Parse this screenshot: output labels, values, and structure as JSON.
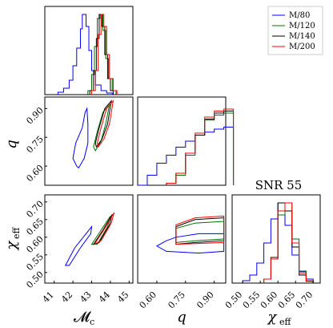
{
  "chart_data": {
    "type": "corner",
    "title": "SNR 55",
    "axes": [
      {
        "key": "Mc",
        "label": "𝓜",
        "sub": "c",
        "range": [
          40.5,
          45.2
        ],
        "ticks": [
          "41",
          "42",
          "43",
          "44",
          "45"
        ]
      },
      {
        "key": "q",
        "label": "q",
        "sub": "",
        "range": [
          0.5,
          0.96
        ],
        "ticks": [
          "0.60",
          "0.75",
          "0.90"
        ]
      },
      {
        "key": "chi",
        "label": "χ",
        "sub": "eff",
        "range": [
          0.47,
          0.72
        ],
        "ticks": [
          "0.50",
          "0.55",
          "0.60",
          "0.65",
          "0.70"
        ]
      }
    ],
    "series": [
      {
        "name": "M/80",
        "color": "#0000ff",
        "hist_Mc": [
          [
            41.2,
            0.03
          ],
          [
            41.5,
            0.08
          ],
          [
            41.8,
            0.18
          ],
          [
            42.0,
            0.36
          ],
          [
            42.2,
            0.58
          ],
          [
            42.4,
            0.82
          ],
          [
            42.5,
            1.0
          ],
          [
            42.7,
            0.85
          ],
          [
            42.85,
            0.55
          ],
          [
            43.0,
            0.3
          ],
          [
            43.2,
            0.12
          ],
          [
            43.5,
            0.05
          ],
          [
            43.8,
            0.02
          ]
        ],
        "hist_q": [
          [
            0.5,
            0.0
          ],
          [
            0.55,
            0.1
          ],
          [
            0.6,
            0.22
          ],
          [
            0.65,
            0.3
          ],
          [
            0.7,
            0.38
          ],
          [
            0.75,
            0.44
          ],
          [
            0.8,
            0.5
          ],
          [
            0.85,
            0.53
          ],
          [
            0.9,
            0.56
          ],
          [
            0.95,
            0.58
          ]
        ],
        "hist_chi": [
          [
            0.5,
            0.03
          ],
          [
            0.52,
            0.1
          ],
          [
            0.54,
            0.25
          ],
          [
            0.56,
            0.5
          ],
          [
            0.58,
            0.8
          ],
          [
            0.6,
            1.0
          ],
          [
            0.62,
            0.72
          ],
          [
            0.64,
            0.35
          ],
          [
            0.66,
            0.14
          ],
          [
            0.68,
            0.05
          ]
        ],
        "contour_Mc_q": [
          [
            42.2,
            0.6
          ],
          [
            42.0,
            0.64
          ],
          [
            42.15,
            0.72
          ],
          [
            42.5,
            0.8
          ],
          [
            42.65,
            0.88
          ],
          [
            42.75,
            0.9
          ],
          [
            42.8,
            0.82
          ],
          [
            42.8,
            0.72
          ],
          [
            42.6,
            0.64
          ],
          [
            42.3,
            0.59
          ]
        ],
        "contour_Mc_chi": [
          [
            41.6,
            0.52
          ],
          [
            42.1,
            0.57
          ],
          [
            42.7,
            0.61
          ],
          [
            43.0,
            0.63
          ],
          [
            42.95,
            0.61
          ],
          [
            42.4,
            0.57
          ],
          [
            41.8,
            0.52
          ]
        ],
        "contour_q_chi": [
          [
            0.65,
            0.59
          ],
          [
            0.7,
            0.6
          ],
          [
            0.82,
            0.61
          ],
          [
            0.95,
            0.61
          ],
          [
            0.95,
            0.56
          ],
          [
            0.82,
            0.555
          ],
          [
            0.65,
            0.56
          ],
          [
            0.6,
            0.575
          ]
        ]
      },
      {
        "name": "M/120",
        "color": "#007000",
        "hist_Mc": [
          [
            42.8,
            0.05
          ],
          [
            43.0,
            0.25
          ],
          [
            43.15,
            0.6
          ],
          [
            43.3,
            0.95
          ],
          [
            43.45,
            1.0
          ],
          [
            43.6,
            0.8
          ],
          [
            43.75,
            0.45
          ],
          [
            43.9,
            0.2
          ],
          [
            44.1,
            0.05
          ]
        ],
        "hist_q": [
          [
            0.65,
            0.02
          ],
          [
            0.7,
            0.1
          ],
          [
            0.75,
            0.3
          ],
          [
            0.8,
            0.5
          ],
          [
            0.85,
            0.65
          ],
          [
            0.9,
            0.7
          ],
          [
            0.95,
            0.72
          ]
        ],
        "hist_chi": [
          [
            0.56,
            0.05
          ],
          [
            0.58,
            0.3
          ],
          [
            0.6,
            0.85
          ],
          [
            0.62,
            1.0
          ],
          [
            0.64,
            0.55
          ],
          [
            0.66,
            0.15
          ],
          [
            0.68,
            0.03
          ]
        ],
        "contour_Mc_q": [
          [
            43.1,
            0.7
          ],
          [
            43.3,
            0.78
          ],
          [
            43.6,
            0.88
          ],
          [
            43.95,
            0.92
          ],
          [
            43.75,
            0.82
          ],
          [
            43.5,
            0.73
          ],
          [
            43.2,
            0.68
          ]
        ],
        "contour_Mc_chi": [
          [
            43.0,
            0.58
          ],
          [
            43.5,
            0.62
          ],
          [
            44.0,
            0.66
          ],
          [
            43.85,
            0.63
          ],
          [
            43.3,
            0.58
          ]
        ],
        "contour_q_chi": [
          [
            0.7,
            0.585
          ],
          [
            0.8,
            0.59
          ],
          [
            0.95,
            0.595
          ],
          [
            0.95,
            0.645
          ],
          [
            0.8,
            0.64
          ],
          [
            0.7,
            0.625
          ]
        ]
      },
      {
        "name": "M/140",
        "color": "#000000",
        "hist_Mc": [
          [
            42.9,
            0.05
          ],
          [
            43.1,
            0.3
          ],
          [
            43.25,
            0.7
          ],
          [
            43.4,
            1.0
          ],
          [
            43.55,
            0.85
          ],
          [
            43.7,
            0.5
          ],
          [
            43.85,
            0.2
          ],
          [
            44.0,
            0.05
          ]
        ],
        "hist_q": [
          [
            0.65,
            0.02
          ],
          [
            0.7,
            0.12
          ],
          [
            0.75,
            0.32
          ],
          [
            0.8,
            0.5
          ],
          [
            0.85,
            0.66
          ],
          [
            0.9,
            0.72
          ],
          [
            0.95,
            0.74
          ]
        ],
        "hist_chi": [
          [
            0.56,
            0.05
          ],
          [
            0.58,
            0.32
          ],
          [
            0.6,
            1.0
          ],
          [
            0.62,
            0.9
          ],
          [
            0.64,
            0.45
          ],
          [
            0.66,
            0.1
          ],
          [
            0.68,
            0.02
          ]
        ],
        "contour_Mc_q": [
          [
            43.2,
            0.72
          ],
          [
            43.4,
            0.8
          ],
          [
            43.7,
            0.9
          ],
          [
            44.05,
            0.94
          ],
          [
            43.85,
            0.82
          ],
          [
            43.55,
            0.74
          ],
          [
            43.25,
            0.7
          ]
        ],
        "contour_Mc_chi": [
          [
            43.1,
            0.58
          ],
          [
            43.6,
            0.62
          ],
          [
            44.1,
            0.665
          ],
          [
            43.95,
            0.635
          ],
          [
            43.4,
            0.585
          ]
        ],
        "contour_q_chi": [
          [
            0.7,
            0.58
          ],
          [
            0.8,
            0.585
          ],
          [
            0.95,
            0.59
          ],
          [
            0.95,
            0.655
          ],
          [
            0.8,
            0.65
          ],
          [
            0.7,
            0.63
          ]
        ]
      },
      {
        "name": "M/200",
        "color": "#ff0000",
        "hist_Mc": [
          [
            43.0,
            0.05
          ],
          [
            43.2,
            0.3
          ],
          [
            43.35,
            0.75
          ],
          [
            43.5,
            1.0
          ],
          [
            43.65,
            0.85
          ],
          [
            43.8,
            0.5
          ],
          [
            43.95,
            0.2
          ],
          [
            44.15,
            0.05
          ]
        ],
        "hist_q": [
          [
            0.65,
            0.02
          ],
          [
            0.7,
            0.12
          ],
          [
            0.75,
            0.32
          ],
          [
            0.8,
            0.52
          ],
          [
            0.85,
            0.68
          ],
          [
            0.9,
            0.74
          ],
          [
            0.95,
            0.76
          ]
        ],
        "hist_chi": [
          [
            0.56,
            0.05
          ],
          [
            0.58,
            0.3
          ],
          [
            0.6,
            0.9
          ],
          [
            0.62,
            1.0
          ],
          [
            0.64,
            0.5
          ],
          [
            0.66,
            0.12
          ],
          [
            0.68,
            0.02
          ]
        ],
        "contour_Mc_q": [
          [
            43.3,
            0.72
          ],
          [
            43.5,
            0.8
          ],
          [
            43.8,
            0.9
          ],
          [
            44.15,
            0.94
          ],
          [
            43.95,
            0.82
          ],
          [
            43.65,
            0.74
          ],
          [
            43.35,
            0.7
          ]
        ],
        "contour_Mc_chi": [
          [
            43.15,
            0.58
          ],
          [
            43.7,
            0.625
          ],
          [
            44.2,
            0.67
          ],
          [
            44.05,
            0.64
          ],
          [
            43.5,
            0.59
          ]
        ],
        "contour_q_chi": [
          [
            0.7,
            0.58
          ],
          [
            0.8,
            0.582
          ],
          [
            0.95,
            0.585
          ],
          [
            0.95,
            0.66
          ],
          [
            0.8,
            0.655
          ],
          [
            0.7,
            0.635
          ]
        ]
      }
    ]
  }
}
